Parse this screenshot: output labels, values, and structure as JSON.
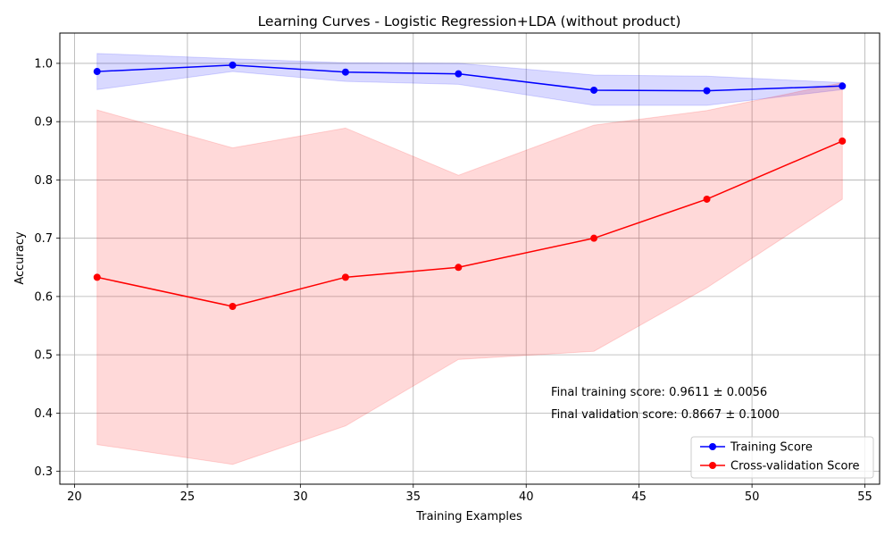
{
  "chart_data": {
    "type": "line",
    "title": "Learning Curves - Logistic Regression+LDA (without product)",
    "xlabel": "Training Examples",
    "ylabel": "Accuracy",
    "xlim": [
      19.35,
      55.65
    ],
    "ylim": [
      0.278,
      1.052
    ],
    "xticks": [
      20,
      25,
      30,
      35,
      40,
      45,
      50,
      55
    ],
    "yticks": [
      0.3,
      0.4,
      0.5,
      0.6,
      0.7,
      0.8,
      0.9,
      1.0
    ],
    "grid": true,
    "legend_position": "lower-right",
    "x": [
      21,
      27,
      32,
      37,
      43,
      48,
      54
    ],
    "series": [
      {
        "name": "Training Score",
        "color": "#0000ff",
        "band_color": "#0000ff",
        "values": [
          0.986,
          0.997,
          0.985,
          0.982,
          0.954,
          0.953,
          0.9611
        ],
        "lower": [
          0.955,
          0.986,
          0.969,
          0.964,
          0.928,
          0.928,
          0.955
        ],
        "upper": [
          1.017,
          1.008,
          1.001,
          1.0,
          0.98,
          0.978,
          0.967
        ]
      },
      {
        "name": "Cross-validation Score",
        "color": "#ff0000",
        "band_color": "#ff0000",
        "values": [
          0.633,
          0.583,
          0.633,
          0.65,
          0.7,
          0.767,
          0.8667
        ],
        "lower": [
          0.346,
          0.312,
          0.378,
          0.492,
          0.506,
          0.615,
          0.767
        ],
        "upper": [
          0.92,
          0.855,
          0.889,
          0.808,
          0.894,
          0.919,
          0.967
        ]
      }
    ],
    "annotations": [
      {
        "text": "Final training score: 0.9611 ± 0.0056",
        "x": 41.1,
        "y": 0.4365
      },
      {
        "text": "Final validation score: 0.8667 ± 0.1000",
        "x": 41.1,
        "y": 0.3985
      }
    ]
  }
}
